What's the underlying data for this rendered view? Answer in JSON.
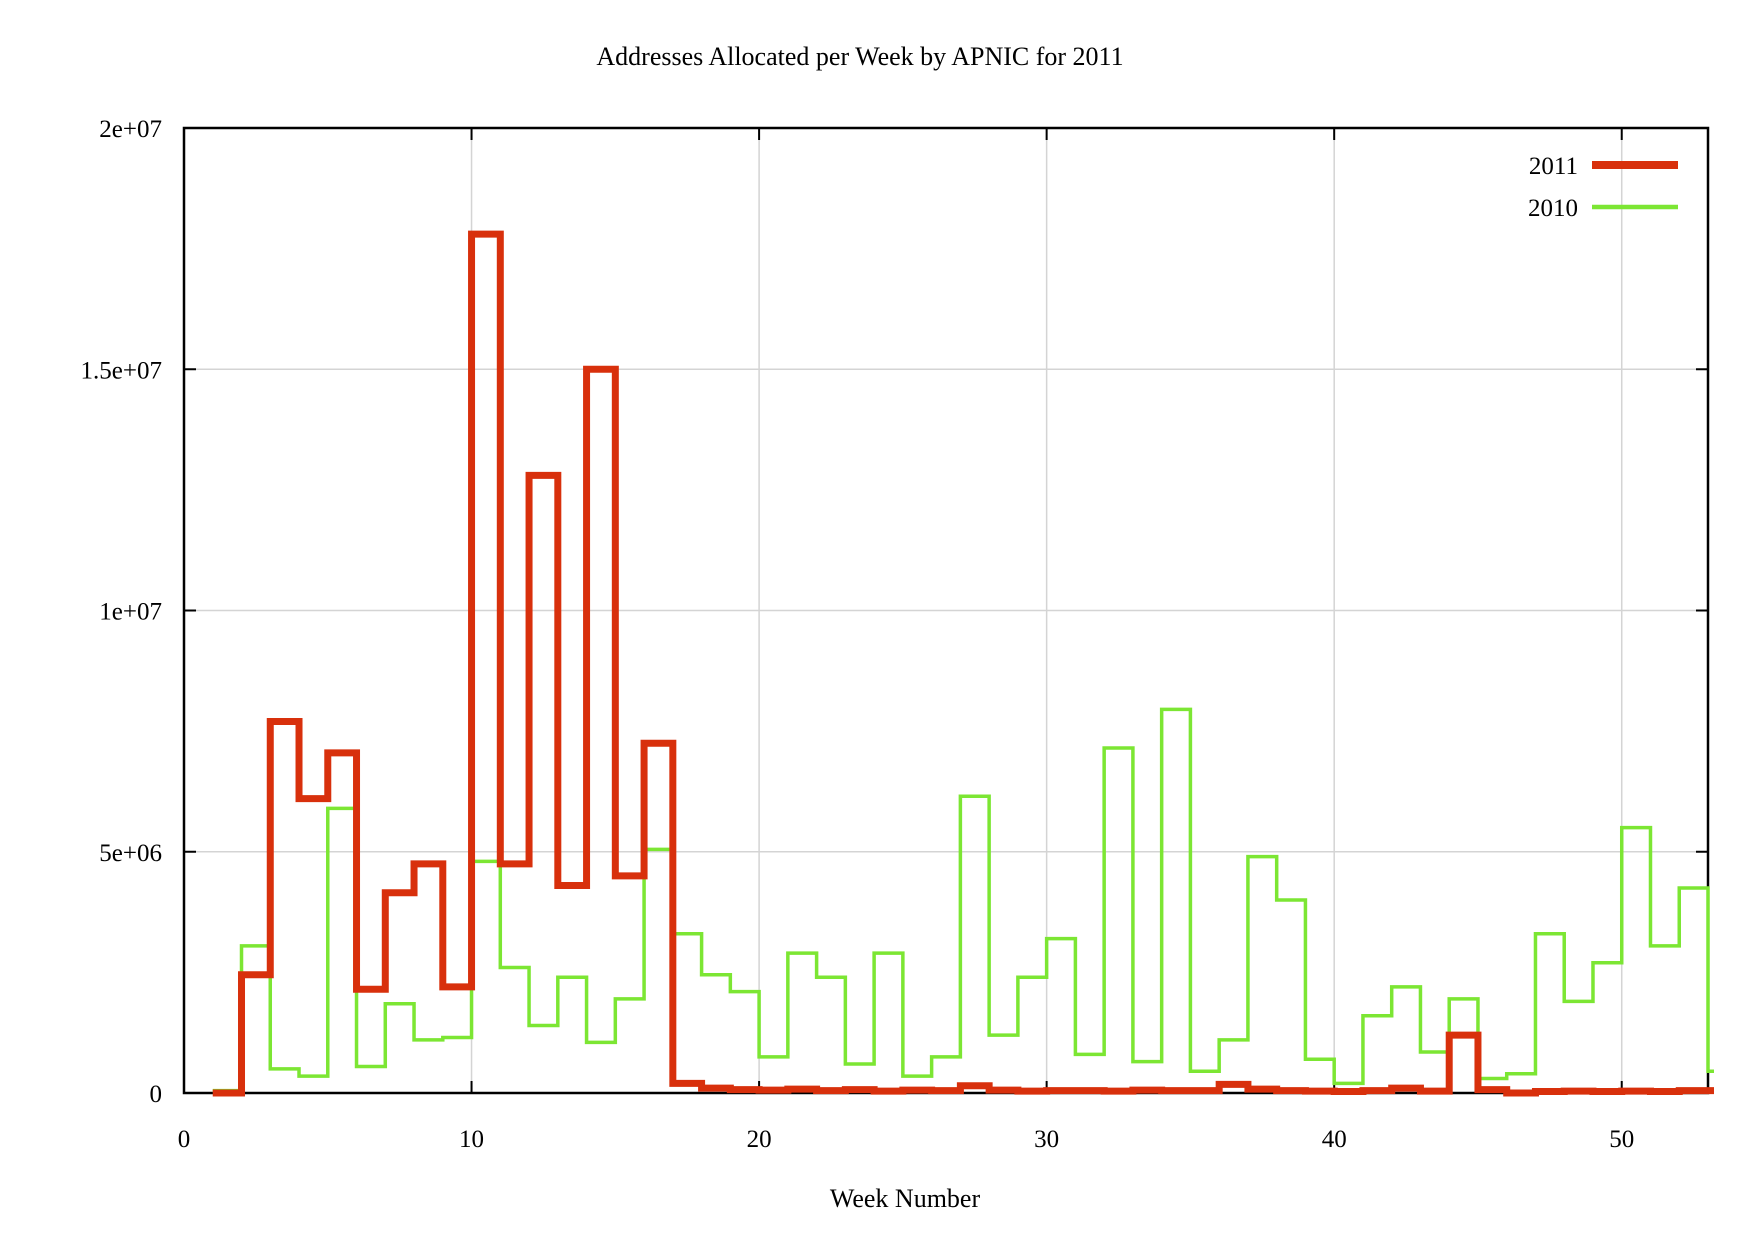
{
  "page": {
    "background": "#ffffff"
  },
  "chart_data": {
    "type": "line",
    "subtype": "steps",
    "title": "Addresses Allocated per Week by APNIC for 2011",
    "xlabel": "Week Number",
    "ylabel": "",
    "x_range": [
      0,
      53
    ],
    "y_range": [
      0,
      20000000
    ],
    "x_ticks": [
      {
        "v": 0,
        "label": "0"
      },
      {
        "v": 10,
        "label": "10"
      },
      {
        "v": 20,
        "label": "20"
      },
      {
        "v": 30,
        "label": "30"
      },
      {
        "v": 40,
        "label": "40"
      },
      {
        "v": 50,
        "label": "50"
      }
    ],
    "y_ticks": [
      {
        "v": 0,
        "label": "0"
      },
      {
        "v": 5000000,
        "label": "5e+06"
      },
      {
        "v": 10000000,
        "label": "1e+07"
      },
      {
        "v": 15000000,
        "label": "1.5e+07"
      },
      {
        "v": 20000000,
        "label": "2e+07"
      }
    ],
    "grid": true,
    "legend_position": "top-right",
    "colors": {
      "series_2011": "#d8300c",
      "series_2010": "#7ce633",
      "grid": "#d4d4d4",
      "border": "#000000",
      "text": "#000000"
    },
    "weeks": [
      1,
      2,
      3,
      4,
      5,
      6,
      7,
      8,
      9,
      10,
      11,
      12,
      13,
      14,
      15,
      16,
      17,
      18,
      19,
      20,
      21,
      22,
      23,
      24,
      25,
      26,
      27,
      28,
      29,
      30,
      31,
      32,
      33,
      34,
      35,
      36,
      37,
      38,
      39,
      40,
      41,
      42,
      43,
      44,
      45,
      46,
      47,
      48,
      49,
      50,
      51,
      52,
      53
    ],
    "series": [
      {
        "name": "2011",
        "color": "#d8300c",
        "line_width": 7,
        "values": [
          0,
          2450000,
          7700000,
          6100000,
          7050000,
          2150000,
          4150000,
          4750000,
          2200000,
          17800000,
          4750000,
          12800000,
          4300000,
          15000000,
          4500000,
          7250000,
          200000,
          100000,
          70000,
          60000,
          80000,
          50000,
          70000,
          40000,
          60000,
          50000,
          150000,
          60000,
          40000,
          50000,
          50000,
          40000,
          60000,
          50000,
          50000,
          180000,
          80000,
          50000,
          40000,
          30000,
          50000,
          100000,
          40000,
          1200000,
          70000,
          0,
          30000,
          40000,
          30000,
          40000,
          30000,
          50000,
          50000
        ]
      },
      {
        "name": "2010",
        "color": "#7ce633",
        "line_width": 3.5,
        "values": [
          50000,
          3050000,
          500000,
          350000,
          5900000,
          550000,
          1850000,
          1100000,
          1150000,
          4800000,
          2600000,
          1400000,
          2400000,
          1050000,
          1950000,
          5050000,
          3300000,
          2450000,
          2100000,
          750000,
          2900000,
          2400000,
          600000,
          2900000,
          350000,
          750000,
          6150000,
          1200000,
          2400000,
          3200000,
          800000,
          7150000,
          650000,
          7950000,
          450000,
          1100000,
          4900000,
          4000000,
          700000,
          200000,
          1600000,
          2200000,
          850000,
          1950000,
          300000,
          400000,
          3300000,
          1900000,
          2700000,
          5500000,
          3050000,
          4250000,
          450000
        ]
      }
    ]
  }
}
